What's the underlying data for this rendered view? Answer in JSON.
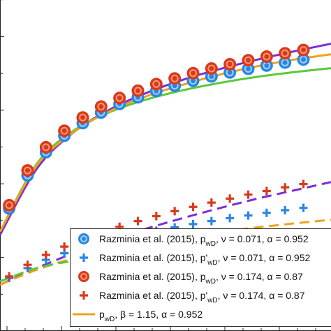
{
  "chart_data": {
    "type": "scatter",
    "title": "",
    "xlabel": "",
    "ylabel": "",
    "xlim": [
      0.4,
      4.0
    ],
    "ylim": [
      0.0,
      1.0
    ],
    "grid": false,
    "legend_position": "bottom-right",
    "series": [
      {
        "name": "Razminia et al. (2015), p_wD, ν = 0.071, α = 0.952",
        "legend": {
          "pre": "Razminia et al. (2015), p",
          "sub": "wD",
          "post": ", ν = 0.071, α = 0.952"
        },
        "marker": "circle",
        "color": "#2b86e4",
        "ring": "#9fd0f5",
        "points": [
          [
            0.5,
            0.37
          ],
          [
            0.7,
            0.47
          ],
          [
            0.9,
            0.54
          ],
          [
            1.1,
            0.59
          ],
          [
            1.3,
            0.628
          ],
          [
            1.5,
            0.66
          ],
          [
            1.7,
            0.686
          ],
          [
            1.9,
            0.706
          ],
          [
            2.1,
            0.725
          ],
          [
            2.3,
            0.741
          ],
          [
            2.5,
            0.756
          ],
          [
            2.7,
            0.769
          ],
          [
            2.9,
            0.781
          ],
          [
            3.1,
            0.792
          ],
          [
            3.3,
            0.802
          ],
          [
            3.5,
            0.811
          ],
          [
            3.7,
            0.82
          ]
        ]
      },
      {
        "name": "Razminia et al. (2015), p'_wD, ν = 0.071, α = 0.952",
        "legend": {
          "pre": "Razminia et al. (2015), p'",
          "sub": "wD",
          "post": ", ν = 0.071, α = 0.952"
        },
        "marker": "plus",
        "color": "#2b86e4",
        "points": [
          [
            0.5,
            0.16
          ],
          [
            0.7,
            0.19
          ],
          [
            0.9,
            0.215
          ],
          [
            1.1,
            0.235
          ],
          [
            1.3,
            0.252
          ],
          [
            1.5,
            0.267
          ],
          [
            1.7,
            0.28
          ],
          [
            1.9,
            0.292
          ],
          [
            2.1,
            0.303
          ],
          [
            2.3,
            0.313
          ],
          [
            2.5,
            0.323
          ],
          [
            2.7,
            0.332
          ],
          [
            2.9,
            0.341
          ],
          [
            3.1,
            0.349
          ],
          [
            3.3,
            0.357
          ],
          [
            3.5,
            0.365
          ],
          [
            3.7,
            0.372
          ]
        ]
      },
      {
        "name": "Razminia et al. (2015), p_wD, ν = 0.174, α = 0.87",
        "legend": {
          "pre": "Razminia et al. (2015), p",
          "sub": "wD",
          "post": ", ν = 0.174, α = 0.87"
        },
        "marker": "circle",
        "color": "#d83a1c",
        "ring": "#ff9a73",
        "points": [
          [
            0.5,
            0.38
          ],
          [
            0.7,
            0.485
          ],
          [
            0.9,
            0.555
          ],
          [
            1.1,
            0.605
          ],
          [
            1.3,
            0.645
          ],
          [
            1.5,
            0.678
          ],
          [
            1.7,
            0.704
          ],
          [
            1.9,
            0.726
          ],
          [
            2.1,
            0.746
          ],
          [
            2.3,
            0.763
          ],
          [
            2.5,
            0.779
          ],
          [
            2.7,
            0.793
          ],
          [
            2.9,
            0.806
          ],
          [
            3.1,
            0.818
          ],
          [
            3.3,
            0.829
          ],
          [
            3.5,
            0.839
          ],
          [
            3.7,
            0.849
          ]
        ]
      },
      {
        "name": "Razminia et al. (2015), p'_wD, ν = 0.174, α = 0.87",
        "legend": {
          "pre": "Razminia et al. (2015), p'",
          "sub": "wD",
          "post": ", ν = 0.174, α = 0.87"
        },
        "marker": "plus",
        "color": "#d83a1c",
        "points": [
          [
            0.5,
            0.165
          ],
          [
            0.7,
            0.2
          ],
          [
            0.9,
            0.23
          ],
          [
            1.1,
            0.255
          ],
          [
            1.3,
            0.277
          ],
          [
            1.5,
            0.297
          ],
          [
            1.7,
            0.315
          ],
          [
            1.9,
            0.332
          ],
          [
            2.1,
            0.347
          ],
          [
            2.3,
            0.362
          ],
          [
            2.5,
            0.375
          ],
          [
            2.7,
            0.388
          ],
          [
            2.9,
            0.4
          ],
          [
            3.1,
            0.412
          ],
          [
            3.3,
            0.423
          ],
          [
            3.5,
            0.434
          ],
          [
            3.7,
            0.444
          ]
        ]
      },
      {
        "name": "p_wD, β = 1.15, α = 0.952",
        "legend": {
          "pre": "p",
          "sub": "wD",
          "post": ", β = 1.15, α = 0.952"
        },
        "marker": "line",
        "color": "#f0a21a",
        "points": [
          [
            0.4,
            0.3
          ],
          [
            0.8,
            0.5
          ],
          [
            1.2,
            0.6
          ],
          [
            1.6,
            0.665
          ],
          [
            2.0,
            0.71
          ],
          [
            2.4,
            0.745
          ],
          [
            2.8,
            0.775
          ],
          [
            3.2,
            0.8
          ],
          [
            3.6,
            0.82
          ],
          [
            4.0,
            0.836
          ]
        ]
      }
    ],
    "extra_curves": [
      {
        "style": "solid",
        "color": "#7b2fd6",
        "points": [
          [
            0.4,
            0.29
          ],
          [
            0.8,
            0.49
          ],
          [
            1.2,
            0.6
          ],
          [
            1.6,
            0.67
          ],
          [
            2.0,
            0.72
          ],
          [
            2.4,
            0.76
          ],
          [
            2.8,
            0.792
          ],
          [
            3.2,
            0.82
          ],
          [
            3.6,
            0.845
          ],
          [
            4.0,
            0.868
          ]
        ]
      },
      {
        "style": "solid",
        "color": "#5bc93a",
        "points": [
          [
            0.4,
            0.3
          ],
          [
            0.8,
            0.505
          ],
          [
            1.2,
            0.605
          ],
          [
            1.6,
            0.662
          ],
          [
            2.0,
            0.7
          ],
          [
            2.4,
            0.728
          ],
          [
            2.8,
            0.75
          ],
          [
            3.2,
            0.768
          ],
          [
            3.6,
            0.782
          ],
          [
            4.0,
            0.794
          ]
        ]
      },
      {
        "style": "dashed",
        "color": "#7b2fd6",
        "points": [
          [
            0.4,
            0.14
          ],
          [
            0.8,
            0.19
          ],
          [
            1.2,
            0.235
          ],
          [
            1.6,
            0.275
          ],
          [
            2.0,
            0.31
          ],
          [
            2.4,
            0.342
          ],
          [
            2.8,
            0.372
          ],
          [
            3.2,
            0.4
          ],
          [
            3.6,
            0.425
          ],
          [
            4.0,
            0.45
          ]
        ]
      },
      {
        "style": "dashed",
        "color": "#f0a21a",
        "points": [
          [
            0.4,
            0.14
          ],
          [
            0.8,
            0.185
          ],
          [
            1.2,
            0.22
          ],
          [
            1.6,
            0.247
          ],
          [
            2.0,
            0.268
          ],
          [
            2.4,
            0.286
          ],
          [
            2.8,
            0.3
          ],
          [
            3.2,
            0.313
          ],
          [
            3.6,
            0.325
          ],
          [
            4.0,
            0.336
          ]
        ]
      },
      {
        "style": "dashed",
        "color": "#5bc93a",
        "points": [
          [
            0.4,
            0.15
          ],
          [
            0.8,
            0.19
          ],
          [
            1.2,
            0.212
          ],
          [
            1.6,
            0.225
          ],
          [
            2.0,
            0.232
          ],
          [
            2.4,
            0.236
          ],
          [
            2.8,
            0.238
          ],
          [
            3.2,
            0.24
          ],
          [
            3.6,
            0.241
          ],
          [
            4.0,
            0.242
          ]
        ]
      }
    ]
  }
}
